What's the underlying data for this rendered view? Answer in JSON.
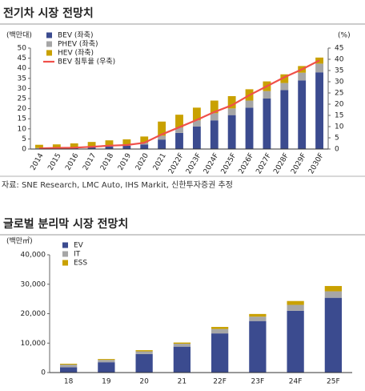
{
  "chart_data": [
    {
      "type": "bar",
      "stacked": true,
      "title": "전기차 시장 전망치",
      "y_label": "(백만대)",
      "y2_label": "(%)",
      "source": "자료: SNE Research, LMC Auto, IHS Markit, 신한투자증권 추정",
      "categories": [
        "2014",
        "2015",
        "2016",
        "2017",
        "2018",
        "2019",
        "2020",
        "2021",
        "2022F",
        "2023F",
        "2024F",
        "2025F",
        "2026F",
        "2027F",
        "2028F",
        "2029F",
        "2030F"
      ],
      "series": [
        {
          "name": "BEV (좌축)",
          "color": "#3b4b8f",
          "values": [
            0.3,
            0.4,
            0.5,
            0.8,
            1.3,
            1.6,
            2.2,
            4.7,
            8.0,
            11.2,
            14.2,
            16.8,
            20.5,
            25.0,
            29.2,
            34.0,
            38.0
          ]
        },
        {
          "name": "PHEV (좌축)",
          "color": "#a6a6a6",
          "values": [
            0.2,
            0.3,
            0.3,
            0.4,
            0.6,
            0.6,
            0.9,
            1.9,
            2.7,
            3.0,
            3.5,
            3.3,
            3.5,
            3.7,
            3.5,
            3.8,
            4.3
          ]
        },
        {
          "name": "HEV (좌축)",
          "color": "#c9a100",
          "values": [
            1.6,
            1.6,
            2.0,
            2.3,
            2.4,
            2.6,
            3.1,
            7.0,
            6.3,
            6.3,
            6.3,
            6.1,
            5.6,
            4.8,
            4.3,
            3.3,
            3.0
          ]
        },
        {
          "name": "BEV 침투율 (우축)",
          "color": "#f0504a",
          "type": "line",
          "axis": "y2",
          "values": [
            0.3,
            0.5,
            0.6,
            1.0,
            1.5,
            1.8,
            2.8,
            6.5,
            9.7,
            13.0,
            16.5,
            19.5,
            24.0,
            28.0,
            32.0,
            35.5,
            39.5
          ]
        }
      ],
      "ylim": [
        0,
        50
      ],
      "yticks": [
        0,
        5,
        10,
        15,
        20,
        25,
        30,
        35,
        40,
        45,
        50
      ],
      "y2lim": [
        0,
        45
      ],
      "y2ticks": [
        0,
        5,
        10,
        15,
        20,
        25,
        30,
        35,
        40,
        45
      ],
      "legend": "upper-left",
      "grid": false
    },
    {
      "type": "bar",
      "stacked": true,
      "title": "글로벌 분리막 시장 전망치",
      "y_label": "(백만㎡)",
      "categories": [
        "18",
        "19",
        "20",
        "21",
        "22F",
        "23F",
        "24F",
        "25F"
      ],
      "series": [
        {
          "name": "EV",
          "color": "#3b4b8f",
          "values": [
            1800,
            3500,
            6300,
            8800,
            13300,
            17500,
            21000,
            25400
          ]
        },
        {
          "name": "IT",
          "color": "#a6a6a6",
          "values": [
            900,
            800,
            900,
            1000,
            1500,
            1500,
            2000,
            2200
          ]
        },
        {
          "name": "ESS",
          "color": "#c9a100",
          "values": [
            300,
            300,
            400,
            400,
            700,
            900,
            1300,
            1800
          ]
        }
      ],
      "ylim": [
        0,
        40000
      ],
      "yticks": [
        0,
        {
          "value": 10000,
          "label": "10,000"
        },
        {
          "value": 20000,
          "label": "20,000"
        },
        {
          "value": 30000,
          "label": "30,000"
        },
        {
          "value": 40000,
          "label": "40,000"
        }
      ],
      "legend": "upper-left",
      "grid": false
    }
  ]
}
